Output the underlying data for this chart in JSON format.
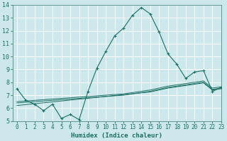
{
  "xlabel": "Humidex (Indice chaleur)",
  "background_color": "#cce8ec",
  "grid_color": "#ffffff",
  "line_color": "#1a6e64",
  "xlim": [
    -0.5,
    23
  ],
  "ylim": [
    5,
    14
  ],
  "x_ticks": [
    0,
    1,
    2,
    3,
    4,
    5,
    6,
    7,
    8,
    9,
    10,
    11,
    12,
    13,
    14,
    15,
    16,
    17,
    18,
    19,
    20,
    21,
    22,
    23
  ],
  "y_ticks": [
    5,
    6,
    7,
    8,
    9,
    10,
    11,
    12,
    13,
    14
  ],
  "series_main": [
    7.5,
    6.6,
    6.3,
    5.8,
    6.3,
    5.2,
    5.5,
    5.1,
    7.3,
    9.1,
    10.4,
    11.6,
    12.2,
    13.2,
    13.8,
    13.3,
    11.9,
    10.2,
    9.4,
    8.3,
    8.8,
    8.9,
    7.3,
    7.6
  ],
  "series_reg": [
    [
      6.5,
      6.55,
      6.6,
      6.65,
      6.7,
      6.75,
      6.8,
      6.85,
      6.9,
      6.95,
      7.0,
      7.05,
      7.1,
      7.2,
      7.3,
      7.4,
      7.55,
      7.7,
      7.8,
      7.9,
      8.0,
      8.1,
      7.55,
      7.65
    ],
    [
      6.4,
      6.45,
      6.5,
      6.55,
      6.6,
      6.65,
      6.7,
      6.75,
      6.8,
      6.85,
      6.9,
      6.95,
      7.0,
      7.1,
      7.2,
      7.3,
      7.45,
      7.6,
      7.7,
      7.8,
      7.9,
      8.0,
      7.45,
      7.55
    ],
    [
      6.2,
      6.27,
      6.34,
      6.41,
      6.48,
      6.55,
      6.62,
      6.69,
      6.76,
      6.83,
      6.9,
      6.97,
      7.04,
      7.11,
      7.18,
      7.25,
      7.4,
      7.55,
      7.65,
      7.75,
      7.85,
      7.95,
      7.4,
      7.5
    ]
  ]
}
